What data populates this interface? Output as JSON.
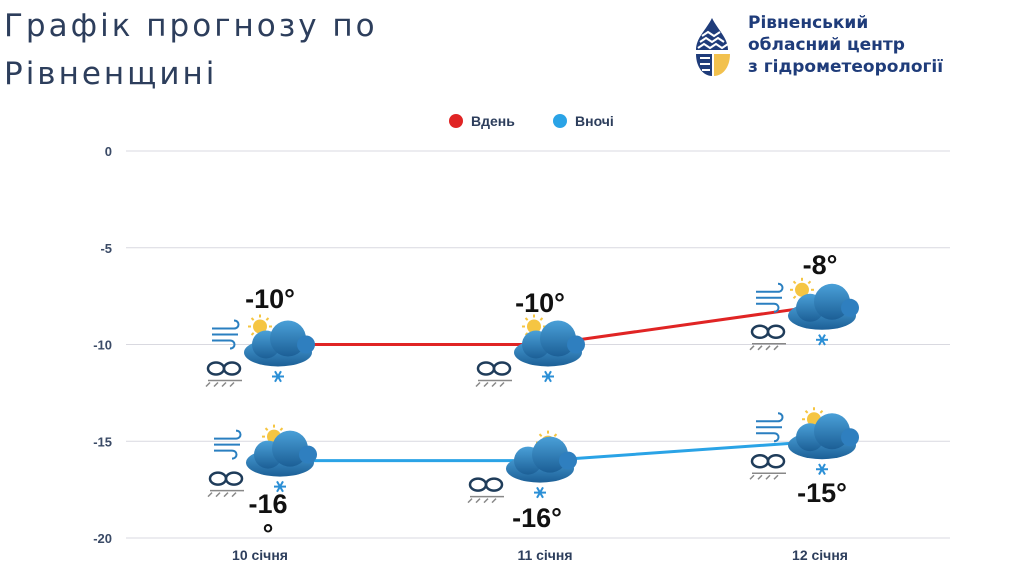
{
  "header": {
    "title_line1": "Графік прогнозу по",
    "title_line2": "Рівненщині"
  },
  "org": {
    "line1": "Рівненський",
    "line2": "обласний центр",
    "line3": "з гідрометеорології"
  },
  "colors": {
    "day": "#e02424",
    "night": "#2aa3e6",
    "grid": "#d9d9e0",
    "text": "#2d3e5c",
    "logo_blue": "#1f3c7a",
    "logo_yellow": "#f2c14e"
  },
  "icons": {
    "weather": "cloud-sun-snow-icon",
    "wind": "wind-icon",
    "fog": "fog-icon",
    "logo": "water-drop-logo-icon"
  },
  "chart_data": {
    "type": "line",
    "categories": [
      "10 січня",
      "11 січня",
      "12 січня"
    ],
    "series": [
      {
        "name": "Вдень",
        "values": [
          -10,
          -10,
          -8
        ],
        "labels": [
          "-10°",
          "-10°",
          "-8°"
        ]
      },
      {
        "name": "Вночі",
        "values": [
          -16,
          -16,
          -15
        ],
        "labels": [
          "-16\n°",
          "-16°",
          "-15°"
        ]
      }
    ],
    "ylim": [
      -20,
      0
    ],
    "yticks": [
      0,
      -5,
      -10,
      -15,
      -20
    ],
    "grid": true,
    "legend_position": "top-center",
    "xlabel": "",
    "ylabel": ""
  }
}
